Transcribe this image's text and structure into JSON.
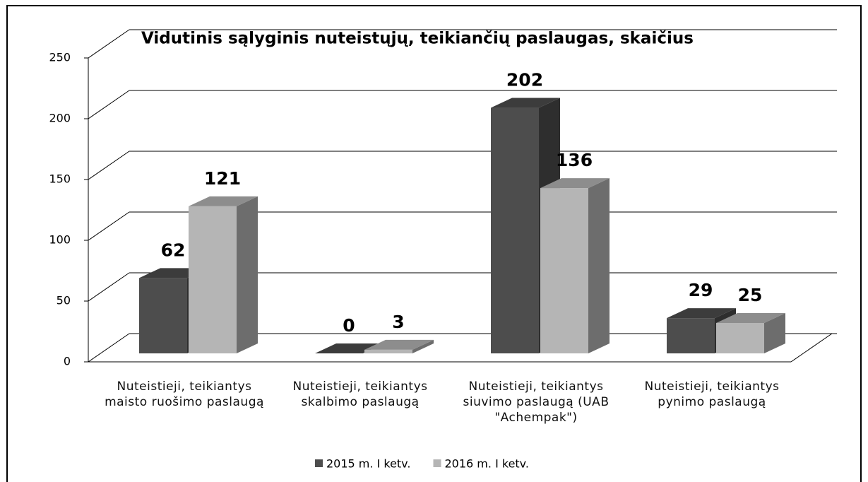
{
  "chart_data": {
    "type": "bar3d",
    "title": "Vidutinis sąlyginis nuteistųjų, teikiančių paslaugas, skaičius",
    "categories": [
      "Nuteistieji, teikiantys maisto ruošimo paslaugą",
      "Nuteistieji, teikiantys skalbimo paslaugą",
      "Nuteistieji, teikiantys siuvimo paslaugą (UAB \"Achempak\")",
      "Nuteistieji, teikiantys pynimo paslaugą"
    ],
    "series": [
      {
        "name": "2015 m. I ketv.",
        "color": "#4d4d4d",
        "values": [
          62,
          0,
          202,
          29
        ]
      },
      {
        "name": "2016 m. I ketv.",
        "color": "#b5b5b5",
        "values": [
          121,
          3,
          136,
          25
        ]
      }
    ],
    "ylim": [
      0,
      250
    ],
    "yticks": [
      0,
      50,
      100,
      150,
      200,
      250
    ],
    "grid": true,
    "legend": "bottom"
  }
}
